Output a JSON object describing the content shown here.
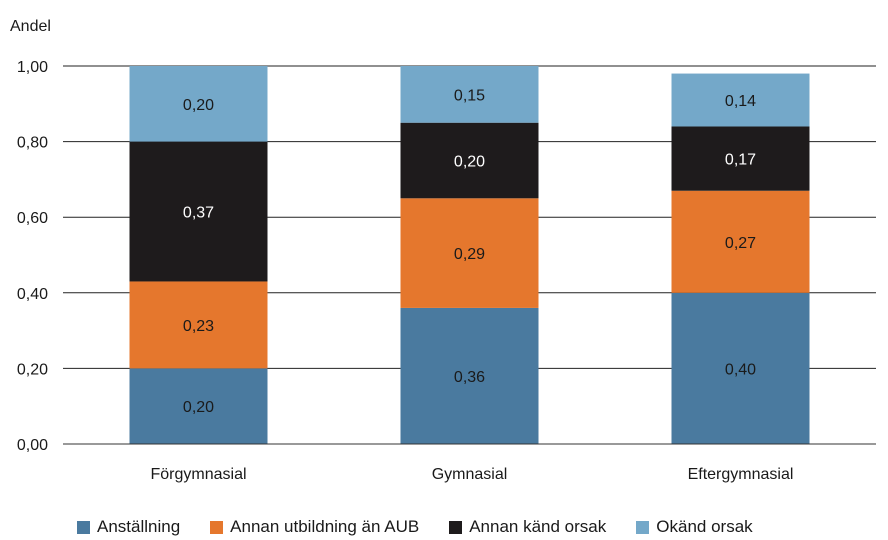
{
  "chart_data": {
    "type": "bar",
    "stacked": true,
    "ylabel": "Andel",
    "xlabel": "",
    "ylim": [
      0,
      1
    ],
    "yticks": [
      "0,00",
      "0,20",
      "0,40",
      "0,60",
      "0,80",
      "1,00"
    ],
    "categories": [
      "Förgymnasial",
      "Gymnasial",
      "Eftergymnasial"
    ],
    "series": [
      {
        "name": "Anställning",
        "color": "#4a7a9f",
        "values": [
          0.2,
          0.36,
          0.4
        ],
        "labels": [
          "0,20",
          "0,36",
          "0,40"
        ]
      },
      {
        "name": "Annan utbildning än AUB",
        "color": "#e5772d",
        "values": [
          0.23,
          0.29,
          0.27
        ],
        "labels": [
          "0,23",
          "0,29",
          "0,27"
        ]
      },
      {
        "name": "Annan känd orsak",
        "color": "#1e1b1c",
        "values": [
          0.37,
          0.2,
          0.17
        ],
        "labels": [
          "0,37",
          "0,20",
          "0,17"
        ]
      },
      {
        "name": "Okänd orsak",
        "color": "#74a8c9",
        "values": [
          0.2,
          0.15,
          0.14
        ],
        "labels": [
          "0,20",
          "0,15",
          "0,14"
        ]
      }
    ],
    "grid": true,
    "legend": "bottom"
  }
}
